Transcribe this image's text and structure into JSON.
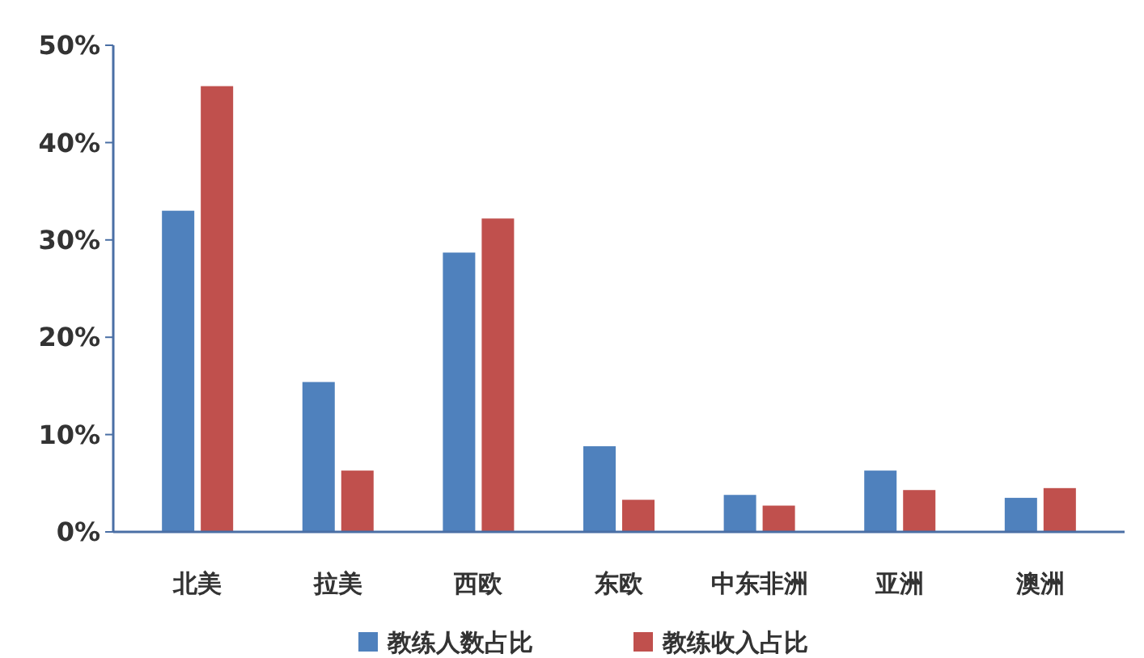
{
  "chart_data": {
    "type": "bar",
    "categories": [
      "北美",
      "拉美",
      "西欧",
      "东欧",
      "中东非洲",
      "亚洲",
      "澳洲"
    ],
    "series": [
      {
        "name": "教练人数占比",
        "color": "#4f81bd",
        "values": [
          33,
          15.4,
          28.7,
          8.8,
          3.8,
          6.3,
          3.5
        ]
      },
      {
        "name": "教练收入占比",
        "color": "#c0504d",
        "values": [
          45.8,
          6.3,
          32.2,
          3.3,
          2.7,
          4.3,
          4.5
        ]
      }
    ],
    "ylim": [
      0,
      50
    ],
    "yticks": [
      {
        "value": 0,
        "label": "0%"
      },
      {
        "value": 10,
        "label": "10%"
      },
      {
        "value": 20,
        "label": "20%"
      },
      {
        "value": 30,
        "label": "30%"
      },
      {
        "value": 40,
        "label": "40%"
      },
      {
        "value": 50,
        "label": "50%"
      }
    ],
    "grid": false,
    "legend": "bottom"
  }
}
